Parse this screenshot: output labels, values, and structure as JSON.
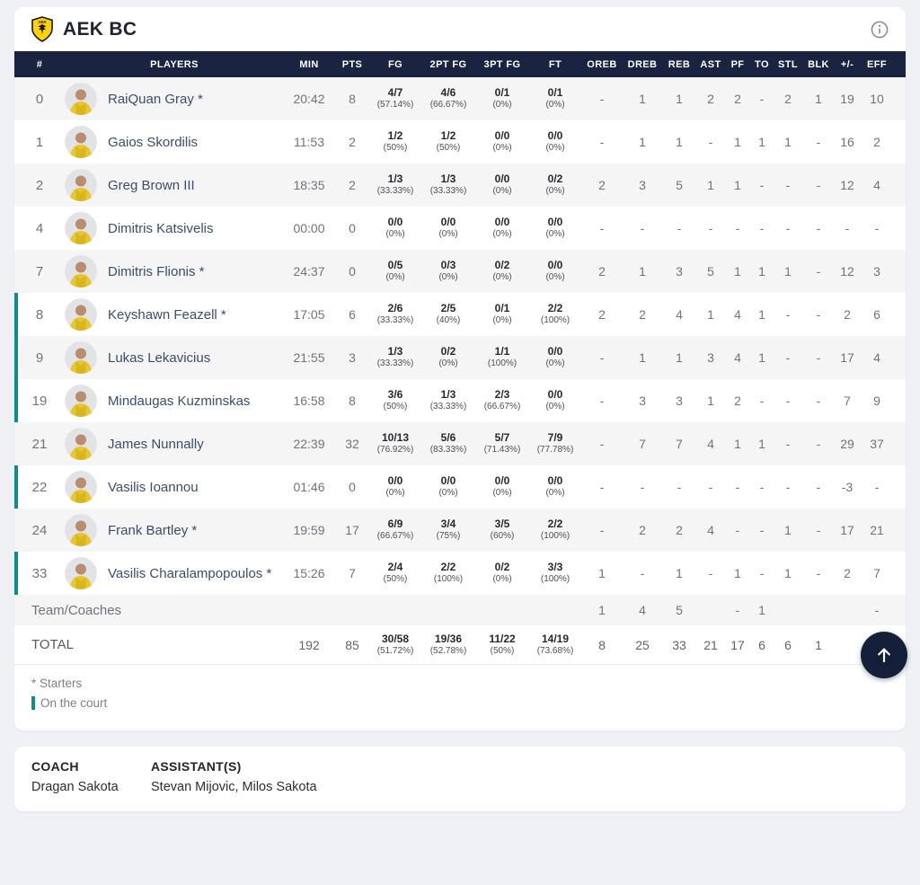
{
  "header": {
    "team_name": "AEK BC",
    "logo": "aek-shield-logo",
    "info_icon": "info-icon"
  },
  "table": {
    "columns": [
      "#",
      "PLAYERS",
      "MIN",
      "PTS",
      "FG",
      "2PT FG",
      "3PT FG",
      "FT",
      "OREB",
      "DREB",
      "REB",
      "AST",
      "PF",
      "TO",
      "STL",
      "BLK",
      "+/-",
      "EFF"
    ],
    "rows": [
      {
        "num": "0",
        "name": "RaiQuan Gray *",
        "on_court": false,
        "min": "20:42",
        "pts": "8",
        "fg_m": "4/7",
        "fg_p": "(57.14%)",
        "p2_m": "4/6",
        "p2_p": "(66.67%)",
        "p3_m": "0/1",
        "p3_p": "(0%)",
        "ft_m": "0/1",
        "ft_p": "(0%)",
        "oreb": "-",
        "dreb": "1",
        "reb": "1",
        "ast": "2",
        "pf": "2",
        "to": "-",
        "stl": "2",
        "blk": "1",
        "pm": "19",
        "eff": "10"
      },
      {
        "num": "1",
        "name": "Gaios Skordilis",
        "on_court": false,
        "min": "11:53",
        "pts": "2",
        "fg_m": "1/2",
        "fg_p": "(50%)",
        "p2_m": "1/2",
        "p2_p": "(50%)",
        "p3_m": "0/0",
        "p3_p": "(0%)",
        "ft_m": "0/0",
        "ft_p": "(0%)",
        "oreb": "-",
        "dreb": "1",
        "reb": "1",
        "ast": "-",
        "pf": "1",
        "to": "1",
        "stl": "1",
        "blk": "-",
        "pm": "16",
        "eff": "2"
      },
      {
        "num": "2",
        "name": "Greg Brown III",
        "on_court": false,
        "min": "18:35",
        "pts": "2",
        "fg_m": "1/3",
        "fg_p": "(33.33%)",
        "p2_m": "1/3",
        "p2_p": "(33.33%)",
        "p3_m": "0/0",
        "p3_p": "(0%)",
        "ft_m": "0/2",
        "ft_p": "(0%)",
        "oreb": "2",
        "dreb": "3",
        "reb": "5",
        "ast": "1",
        "pf": "1",
        "to": "-",
        "stl": "-",
        "blk": "-",
        "pm": "12",
        "eff": "4"
      },
      {
        "num": "4",
        "name": "Dimitris Katsivelis",
        "on_court": false,
        "min": "00:00",
        "pts": "0",
        "fg_m": "0/0",
        "fg_p": "(0%)",
        "p2_m": "0/0",
        "p2_p": "(0%)",
        "p3_m": "0/0",
        "p3_p": "(0%)",
        "ft_m": "0/0",
        "ft_p": "(0%)",
        "oreb": "-",
        "dreb": "-",
        "reb": "-",
        "ast": "-",
        "pf": "-",
        "to": "-",
        "stl": "-",
        "blk": "-",
        "pm": "-",
        "eff": "-"
      },
      {
        "num": "7",
        "name": "Dimitris Flionis *",
        "on_court": false,
        "min": "24:37",
        "pts": "0",
        "fg_m": "0/5",
        "fg_p": "(0%)",
        "p2_m": "0/3",
        "p2_p": "(0%)",
        "p3_m": "0/2",
        "p3_p": "(0%)",
        "ft_m": "0/0",
        "ft_p": "(0%)",
        "oreb": "2",
        "dreb": "1",
        "reb": "3",
        "ast": "5",
        "pf": "1",
        "to": "1",
        "stl": "1",
        "blk": "-",
        "pm": "12",
        "eff": "3"
      },
      {
        "num": "8",
        "name": "Keyshawn Feazell *",
        "on_court": true,
        "min": "17:05",
        "pts": "6",
        "fg_m": "2/6",
        "fg_p": "(33.33%)",
        "p2_m": "2/5",
        "p2_p": "(40%)",
        "p3_m": "0/1",
        "p3_p": "(0%)",
        "ft_m": "2/2",
        "ft_p": "(100%)",
        "oreb": "2",
        "dreb": "2",
        "reb": "4",
        "ast": "1",
        "pf": "4",
        "to": "1",
        "stl": "-",
        "blk": "-",
        "pm": "2",
        "eff": "6"
      },
      {
        "num": "9",
        "name": "Lukas Lekavicius",
        "on_court": true,
        "min": "21:55",
        "pts": "3",
        "fg_m": "1/3",
        "fg_p": "(33.33%)",
        "p2_m": "0/2",
        "p2_p": "(0%)",
        "p3_m": "1/1",
        "p3_p": "(100%)",
        "ft_m": "0/0",
        "ft_p": "(0%)",
        "oreb": "-",
        "dreb": "1",
        "reb": "1",
        "ast": "3",
        "pf": "4",
        "to": "1",
        "stl": "-",
        "blk": "-",
        "pm": "17",
        "eff": "4"
      },
      {
        "num": "19",
        "name": "Mindaugas Kuzminskas",
        "on_court": true,
        "min": "16:58",
        "pts": "8",
        "fg_m": "3/6",
        "fg_p": "(50%)",
        "p2_m": "1/3",
        "p2_p": "(33.33%)",
        "p3_m": "2/3",
        "p3_p": "(66.67%)",
        "ft_m": "0/0",
        "ft_p": "(0%)",
        "oreb": "-",
        "dreb": "3",
        "reb": "3",
        "ast": "1",
        "pf": "2",
        "to": "-",
        "stl": "-",
        "blk": "-",
        "pm": "7",
        "eff": "9"
      },
      {
        "num": "21",
        "name": "James Nunnally",
        "on_court": false,
        "min": "22:39",
        "pts": "32",
        "fg_m": "10/13",
        "fg_p": "(76.92%)",
        "p2_m": "5/6",
        "p2_p": "(83.33%)",
        "p3_m": "5/7",
        "p3_p": "(71.43%)",
        "ft_m": "7/9",
        "ft_p": "(77.78%)",
        "oreb": "-",
        "dreb": "7",
        "reb": "7",
        "ast": "4",
        "pf": "1",
        "to": "1",
        "stl": "-",
        "blk": "-",
        "pm": "29",
        "eff": "37"
      },
      {
        "num": "22",
        "name": "Vasilis Ioannou",
        "on_court": true,
        "min": "01:46",
        "pts": "0",
        "fg_m": "0/0",
        "fg_p": "(0%)",
        "p2_m": "0/0",
        "p2_p": "(0%)",
        "p3_m": "0/0",
        "p3_p": "(0%)",
        "ft_m": "0/0",
        "ft_p": "(0%)",
        "oreb": "-",
        "dreb": "-",
        "reb": "-",
        "ast": "-",
        "pf": "-",
        "to": "-",
        "stl": "-",
        "blk": "-",
        "pm": "-3",
        "eff": "-"
      },
      {
        "num": "24",
        "name": "Frank Bartley *",
        "on_court": false,
        "min": "19:59",
        "pts": "17",
        "fg_m": "6/9",
        "fg_p": "(66.67%)",
        "p2_m": "3/4",
        "p2_p": "(75%)",
        "p3_m": "3/5",
        "p3_p": "(60%)",
        "ft_m": "2/2",
        "ft_p": "(100%)",
        "oreb": "-",
        "dreb": "2",
        "reb": "2",
        "ast": "4",
        "pf": "-",
        "to": "-",
        "stl": "1",
        "blk": "-",
        "pm": "17",
        "eff": "21"
      },
      {
        "num": "33",
        "name": "Vasilis Charalampopoulos *",
        "on_court": true,
        "min": "15:26",
        "pts": "7",
        "fg_m": "2/4",
        "fg_p": "(50%)",
        "p2_m": "2/2",
        "p2_p": "(100%)",
        "p3_m": "0/2",
        "p3_p": "(0%)",
        "ft_m": "3/3",
        "ft_p": "(100%)",
        "oreb": "1",
        "dreb": "-",
        "reb": "1",
        "ast": "-",
        "pf": "1",
        "to": "-",
        "stl": "1",
        "blk": "-",
        "pm": "2",
        "eff": "7"
      }
    ],
    "team_row": {
      "label": "Team/Coaches",
      "oreb": "1",
      "dreb": "4",
      "reb": "5",
      "ast": "",
      "pf": "-",
      "to": "1",
      "stl": "",
      "blk": "",
      "pm": "",
      "eff": "-"
    },
    "total_row": {
      "label": "TOTAL",
      "min": "192",
      "pts": "85",
      "fg_m": "30/58",
      "fg_p": "(51.72%)",
      "p2_m": "19/36",
      "p2_p": "(52.78%)",
      "p3_m": "11/22",
      "p3_p": "(50%)",
      "ft_m": "14/19",
      "ft_p": "(73.68%)",
      "oreb": "8",
      "dreb": "25",
      "reb": "33",
      "ast": "21",
      "pf": "17",
      "to": "6",
      "stl": "6",
      "blk": "1",
      "pm": "",
      "eff": ""
    }
  },
  "legend": {
    "starters": "* Starters",
    "on_court": "On the court"
  },
  "coach_section": {
    "coach_label": "COACH",
    "coach_name": "Dragan Sakota",
    "assistants_label": "ASSISTANT(S)",
    "assistants_names": "Stevan Mijovic, Milos Sakota"
  },
  "colors": {
    "header_navy": "#1a2440",
    "on_court_teal": "#0e8b8d",
    "team_yellow": "#ffd200",
    "fab_navy": "#142039"
  }
}
